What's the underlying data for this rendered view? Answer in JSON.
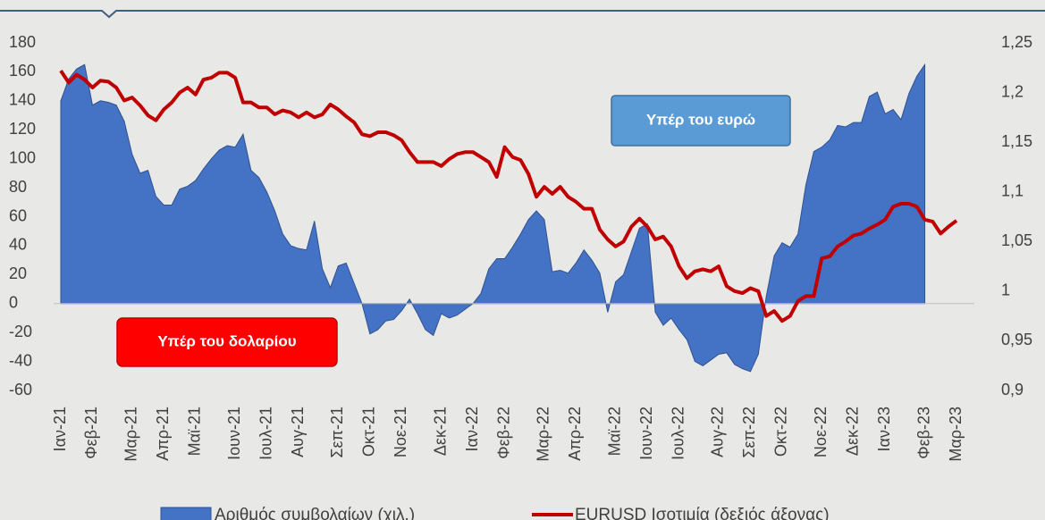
{
  "chart_data": {
    "type": "area",
    "categories": [
      "Ιαν-21",
      null,
      null,
      null,
      "Φεβ-21",
      null,
      null,
      null,
      null,
      "Μαρ-21",
      null,
      null,
      null,
      "Απρ-21",
      null,
      null,
      null,
      "Μαϊ-21",
      null,
      null,
      null,
      null,
      "Ιουν-21",
      null,
      null,
      null,
      "Ιουλ-21",
      null,
      null,
      null,
      "Αυγ-21",
      null,
      null,
      null,
      null,
      "Σεπ-21",
      null,
      null,
      null,
      "Οκτ-21",
      null,
      null,
      null,
      "Νοε-21",
      null,
      null,
      null,
      null,
      "Δεκ-21",
      null,
      null,
      null,
      "Ιαν-22",
      null,
      null,
      null,
      "Φεβ-22",
      null,
      null,
      null,
      null,
      "Μαρ-22",
      null,
      null,
      null,
      "Απρ-22",
      null,
      null,
      null,
      null,
      "Μαϊ-22",
      null,
      null,
      null,
      "Ιουν-22",
      null,
      null,
      null,
      "Ιουλ-22",
      null,
      null,
      null,
      null,
      "Αυγ-22",
      null,
      null,
      null,
      "Σεπ-22",
      null,
      null,
      null,
      "Οκτ-22",
      null,
      null,
      null,
      null,
      "Νοε-22",
      null,
      null,
      null,
      "Δεκ-22",
      null,
      null,
      null,
      "Ιαν-23",
      null,
      null,
      null,
      null,
      "Φεβ-23",
      null,
      null,
      null,
      "Μαρ-23"
    ],
    "series": [
      {
        "name": "Αριθμός συμβολαίων (χιλ.)",
        "type": "area",
        "color": "#4472c4",
        "axis": "y",
        "values": [
          140,
          155,
          162,
          165,
          137,
          140,
          139,
          137,
          126,
          103,
          90,
          92,
          74,
          68,
          68,
          79,
          81,
          85,
          93,
          100,
          106,
          109,
          108,
          117,
          92,
          87,
          77,
          64,
          48,
          40,
          38,
          37,
          57,
          24,
          11,
          26,
          28,
          14,
          0,
          -21,
          -18,
          -12,
          -11,
          -5,
          3,
          -7,
          -18,
          -22,
          -7,
          -10,
          -8,
          -4,
          0,
          7,
          24,
          31,
          31,
          39,
          48,
          58,
          64,
          58,
          22,
          23,
          21,
          28,
          37,
          30,
          21,
          -6,
          15,
          20,
          36,
          52,
          55,
          -6,
          -15,
          -10,
          -18,
          -25,
          -40,
          -43,
          -39,
          -35,
          -34,
          -42,
          -45,
          -47,
          -35,
          5,
          33,
          42,
          39,
          48,
          82,
          105,
          108,
          113,
          123,
          122,
          125,
          125,
          143,
          146,
          131,
          134,
          127,
          145,
          157,
          165,
          null,
          null,
          null,
          null
        ]
      },
      {
        "name": "EURUSD Ισοτιμία (δεξιός άξονας)",
        "type": "line",
        "color": "#c00000",
        "axis": "y2",
        "values": [
          1.222,
          1.21,
          1.218,
          1.213,
          1.205,
          1.212,
          1.211,
          1.205,
          1.192,
          1.195,
          1.187,
          1.177,
          1.172,
          1.183,
          1.19,
          1.2,
          1.205,
          1.198,
          1.213,
          1.215,
          1.22,
          1.22,
          1.215,
          1.19,
          1.19,
          1.185,
          1.185,
          1.178,
          1.182,
          1.18,
          1.175,
          1.18,
          1.175,
          1.178,
          1.188,
          1.183,
          1.176,
          1.17,
          1.158,
          1.156,
          1.16,
          1.16,
          1.157,
          1.152,
          1.14,
          1.13,
          1.13,
          1.13,
          1.126,
          1.133,
          1.138,
          1.14,
          1.14,
          1.135,
          1.13,
          1.115,
          1.145,
          1.135,
          1.132,
          1.118,
          1.095,
          1.105,
          1.098,
          1.105,
          1.095,
          1.09,
          1.083,
          1.083,
          1.062,
          1.052,
          1.045,
          1.05,
          1.065,
          1.073,
          1.065,
          1.052,
          1.055,
          1.045,
          1.025,
          1.013,
          1.02,
          1.022,
          1.02,
          1.025,
          1.005,
          1.0,
          0.998,
          1.003,
          1.0,
          0.975,
          0.98,
          0.97,
          0.975,
          0.99,
          0.995,
          0.995,
          1.033,
          1.035,
          1.045,
          1.05,
          1.056,
          1.058,
          1.063,
          1.067,
          1.072,
          1.085,
          1.088,
          1.088,
          1.085,
          1.072,
          1.07,
          1.058,
          1.065,
          1.071
        ]
      }
    ],
    "ylim": [
      -60,
      180
    ],
    "yticks": [
      -60,
      -40,
      -20,
      0,
      20,
      40,
      60,
      80,
      100,
      120,
      140,
      160,
      180
    ],
    "y2lim": [
      0.9,
      1.25
    ],
    "y2ticks": [
      {
        "value": 0.9,
        "label": "0,9"
      },
      {
        "value": 0.95,
        "label": "0,95"
      },
      1,
      {
        "value": 1.05,
        "label": "1,05"
      },
      {
        "value": 1.1,
        "label": "1,1"
      },
      {
        "value": 1.15,
        "label": "1,15"
      },
      {
        "value": 1.2,
        "label": "1,2"
      },
      {
        "value": 1.25,
        "label": "1,25"
      }
    ],
    "annotations": [
      "Υπέρ του ευρώ",
      "Υπέρ του δολαρίου"
    ],
    "legend": "bottom"
  }
}
